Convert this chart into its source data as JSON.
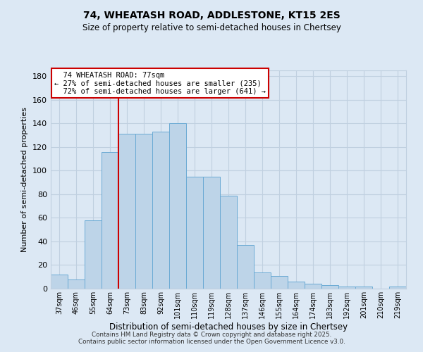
{
  "title1": "74, WHEATASH ROAD, ADDLESTONE, KT15 2ES",
  "title2": "Size of property relative to semi-detached houses in Chertsey",
  "xlabel": "Distribution of semi-detached houses by size in Chertsey",
  "ylabel": "Number of semi-detached properties",
  "categories": [
    "37sqm",
    "46sqm",
    "55sqm",
    "64sqm",
    "73sqm",
    "83sqm",
    "92sqm",
    "101sqm",
    "110sqm",
    "119sqm",
    "128sqm",
    "137sqm",
    "146sqm",
    "155sqm",
    "164sqm",
    "174sqm",
    "183sqm",
    "192sqm",
    "201sqm",
    "210sqm",
    "219sqm"
  ],
  "values": [
    12,
    8,
    58,
    116,
    131,
    131,
    133,
    140,
    95,
    95,
    79,
    37,
    14,
    11,
    6,
    4,
    3,
    2,
    2,
    0,
    2
  ],
  "bar_color": "#bdd4e8",
  "bar_edge_color": "#6aaad4",
  "vline_index": 4,
  "subject_label": "74 WHEATASH ROAD: 77sqm",
  "pct_smaller": "27% of semi-detached houses are smaller (235)",
  "pct_larger": "72% of semi-detached houses are larger (641)",
  "annotation_box_color": "#ffffff",
  "annotation_box_edge": "#cc0000",
  "vline_color": "#cc0000",
  "grid_color": "#c0d0e0",
  "bg_color": "#dce8f4",
  "footer1": "Contains HM Land Registry data © Crown copyright and database right 2025.",
  "footer2": "Contains public sector information licensed under the Open Government Licence v3.0.",
  "ylim": [
    0,
    185
  ],
  "yticks": [
    0,
    20,
    40,
    60,
    80,
    100,
    120,
    140,
    160,
    180
  ]
}
